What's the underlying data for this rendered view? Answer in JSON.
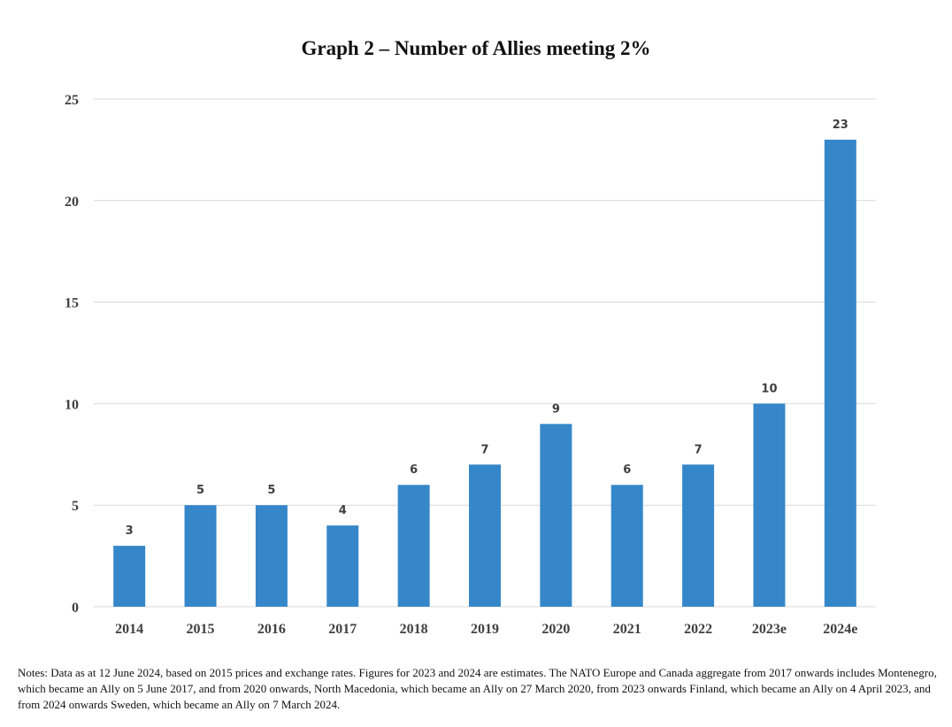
{
  "chart_data": {
    "type": "bar",
    "title": "Graph 2 – Number of Allies meeting 2%",
    "categories": [
      "2014",
      "2015",
      "2016",
      "2017",
      "2018",
      "2019",
      "2020",
      "2021",
      "2022",
      "2023e",
      "2024e"
    ],
    "values": [
      3,
      5,
      5,
      4,
      6,
      7,
      9,
      6,
      7,
      10,
      23
    ],
    "data_labels": [
      "3",
      "5",
      "5",
      "4",
      "6",
      "7",
      "9",
      "6",
      "7",
      "10",
      "23"
    ],
    "ylim": [
      0,
      25
    ],
    "yticks": [
      0,
      5,
      10,
      15,
      20,
      25
    ],
    "ytick_labels": [
      "0",
      "5",
      "10",
      "15",
      "20",
      "25"
    ],
    "xlabel": "",
    "ylabel": "",
    "grid": "horizontal",
    "bar_color": "#3587C9",
    "grid_color": "#d9d9d9"
  },
  "notes": "Notes: Data as at 12 June 2024, based on 2015 prices and exchange rates. Figures for 2023 and 2024 are estimates. The NATO Europe and Canada aggregate from 2017 onwards includes Montenegro, which became an Ally on 5 June 2017, and from 2020 onwards, North Macedonia, which became an Ally on 27 March 2020, from 2023 onwards Finland, which became an Ally on 4 April 2023, and from 2024 onwards Sweden, which became an Ally on 7 March 2024."
}
